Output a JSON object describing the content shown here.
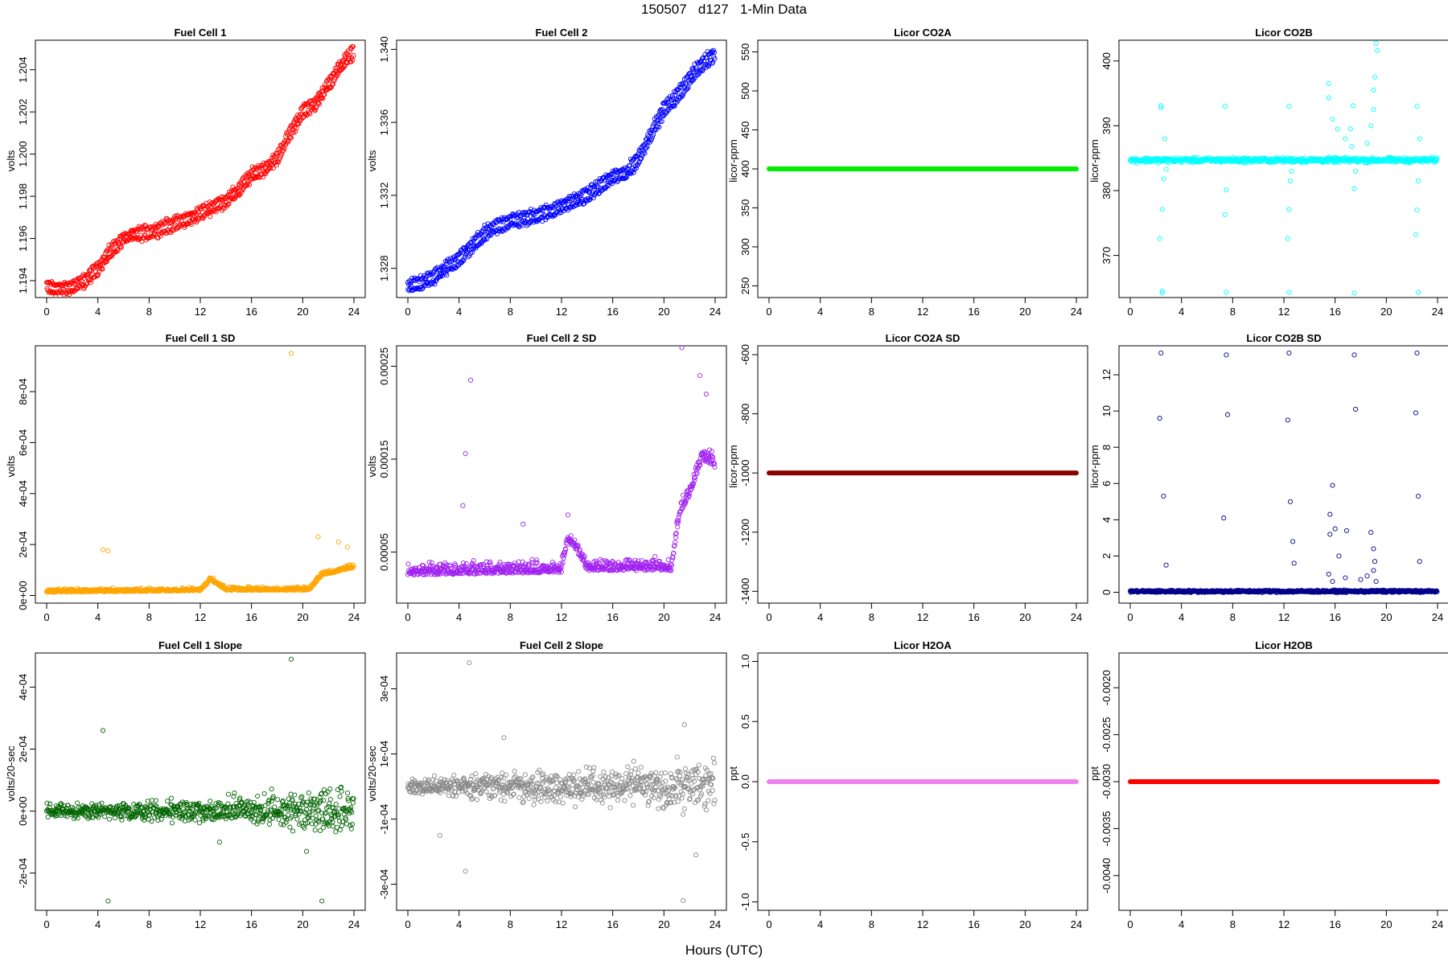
{
  "figure": {
    "title": "150507   d127   1-Min Data",
    "xlabel": "Hours (UTC)"
  },
  "chart_data": [
    {
      "id": "fc1",
      "type": "scatter",
      "title": "Fuel Cell 1",
      "ylabel": "volts",
      "color": "#ff0000",
      "xlim": [
        0,
        24
      ],
      "xticks": [
        0,
        4,
        8,
        12,
        16,
        20,
        24
      ],
      "ylim": [
        1.1932,
        1.2054
      ],
      "yticks": [
        1.194,
        1.196,
        1.198,
        1.2,
        1.202,
        1.204
      ],
      "ytick_labels": [
        "1.194",
        "1.196",
        "1.198",
        "1.200",
        "1.202",
        "1.204"
      ],
      "series": [
        {
          "kind": "band",
          "band": 0.0004,
          "jitter": 0.00025,
          "x": [
            0,
            1,
            2,
            3,
            4,
            5,
            6,
            7,
            8,
            9,
            10,
            11,
            12,
            13,
            14,
            15,
            16,
            17,
            18,
            19,
            20,
            21,
            22,
            23,
            24
          ],
          "y": [
            1.1937,
            1.1936,
            1.1937,
            1.194,
            1.1946,
            1.1954,
            1.196,
            1.1962,
            1.1963,
            1.1965,
            1.1967,
            1.1969,
            1.1972,
            1.1975,
            1.1978,
            1.1983,
            1.199,
            1.1993,
            1.1998,
            1.201,
            1.202,
            1.2024,
            1.2033,
            1.2042,
            1.2049
          ]
        }
      ]
    },
    {
      "id": "fc2",
      "type": "scatter",
      "title": "Fuel Cell 2",
      "ylabel": "volts",
      "color": "#0000ff",
      "xlim": [
        0,
        24
      ],
      "xticks": [
        0,
        4,
        8,
        12,
        16,
        20,
        24
      ],
      "ylim": [
        1.3264,
        1.3405
      ],
      "yticks": [
        1.328,
        1.332,
        1.336,
        1.34
      ],
      "ytick_labels": [
        "1.328",
        "1.332",
        "1.336",
        "1.340"
      ],
      "series": [
        {
          "kind": "band",
          "band": 0.0005,
          "jitter": 0.0003,
          "x": [
            0,
            1,
            2,
            3,
            4,
            5,
            6,
            7,
            8,
            9,
            10,
            11,
            12,
            13,
            14,
            15,
            16,
            17,
            18,
            19,
            20,
            21,
            22,
            23,
            24
          ],
          "y": [
            1.327,
            1.3272,
            1.3275,
            1.328,
            1.3285,
            1.3292,
            1.3299,
            1.3303,
            1.3306,
            1.3307,
            1.3309,
            1.3311,
            1.3314,
            1.3317,
            1.332,
            1.3325,
            1.333,
            1.3332,
            1.334,
            1.3354,
            1.3367,
            1.3374,
            1.3384,
            1.3392,
            1.3398
          ]
        }
      ]
    },
    {
      "id": "co2a",
      "type": "scatter",
      "title": "Licor CO2A",
      "ylabel": "licor-ppm",
      "color": "#00ee00",
      "xlim": [
        0,
        24
      ],
      "xticks": [
        0,
        4,
        8,
        12,
        16,
        20,
        24
      ],
      "ylim": [
        235,
        565
      ],
      "yticks": [
        250,
        300,
        350,
        400,
        450,
        500,
        550
      ],
      "ytick_labels": [
        "250",
        "300",
        "350",
        "400",
        "450",
        "500",
        "550"
      ],
      "series": [
        {
          "kind": "flat",
          "value": 400
        }
      ]
    },
    {
      "id": "co2b",
      "type": "scatter",
      "title": "Licor CO2B",
      "ylabel": "licor-ppm",
      "color": "#00ffff",
      "xlim": [
        0,
        24
      ],
      "xticks": [
        0,
        4,
        8,
        12,
        16,
        20,
        24
      ],
      "ylim": [
        363.5,
        403.2
      ],
      "yticks": [
        370,
        380,
        390,
        400
      ],
      "ytick_labels": [
        "370",
        "380",
        "390",
        "400"
      ],
      "series": [
        {
          "kind": "noise",
          "base": 384.7,
          "noise": 0.3,
          "points": [
            [
              2.4,
              392.8
            ],
            [
              2.4,
              393.1
            ],
            [
              2.5,
              364.2
            ],
            [
              2.5,
              364.5
            ],
            [
              2.3,
              372.6
            ],
            [
              2.5,
              377.1
            ],
            [
              2.6,
              381.8
            ],
            [
              2.7,
              388.0
            ],
            [
              2.8,
              383.3
            ],
            [
              7.4,
              393.0
            ],
            [
              7.5,
              364.3
            ],
            [
              7.4,
              376.3
            ],
            [
              7.5,
              380.1
            ],
            [
              12.4,
              393.0
            ],
            [
              12.4,
              364.3
            ],
            [
              12.3,
              372.6
            ],
            [
              12.4,
              377.1
            ],
            [
              12.5,
              381.5
            ],
            [
              12.6,
              383.0
            ],
            [
              15.5,
              396.5
            ],
            [
              15.5,
              394.3
            ],
            [
              15.8,
              391.0
            ],
            [
              16.2,
              389.5
            ],
            [
              16.8,
              388.0
            ],
            [
              17.2,
              389.5
            ],
            [
              17.3,
              386.8
            ],
            [
              17.4,
              393.1
            ],
            [
              17.5,
              364.2
            ],
            [
              17.5,
              380.3
            ],
            [
              17.6,
              383.0
            ],
            [
              18.5,
              387.3
            ],
            [
              18.8,
              390.0
            ],
            [
              19.0,
              395.5
            ],
            [
              19.1,
              397.5
            ],
            [
              19.2,
              402.7
            ],
            [
              19.3,
              401.6
            ],
            [
              19.0,
              392.5
            ],
            [
              22.4,
              393.0
            ],
            [
              22.5,
              364.3
            ],
            [
              22.3,
              373.2
            ],
            [
              22.4,
              377.0
            ],
            [
              22.5,
              381.5
            ],
            [
              22.6,
              388.0
            ]
          ]
        }
      ]
    },
    {
      "id": "fc1sd",
      "type": "scatter",
      "title": "Fuel Cell 1 SD",
      "ylabel": "volts",
      "color": "#ffa500",
      "xlim": [
        0,
        24
      ],
      "xticks": [
        0,
        4,
        8,
        12,
        16,
        20,
        24
      ],
      "ylim": [
        -3e-05,
        0.00098
      ],
      "yticks": [
        0,
        0.0002,
        0.0004,
        0.0006,
        0.0008
      ],
      "ytick_labels": [
        "0e+00",
        "2e-04",
        "4e-04",
        "6e-04",
        "8e-04"
      ],
      "series": [
        {
          "kind": "noise",
          "profile": [
            [
              0,
              1.2e-05
            ],
            [
              12,
              1.8e-05
            ],
            [
              12.8,
              6e-05
            ],
            [
              14,
              2e-05
            ],
            [
              20.5,
              2e-05
            ],
            [
              21.5,
              8e-05
            ],
            [
              22.5,
              9e-05
            ],
            [
              24,
              0.00011
            ]
          ],
          "noise": 1e-05,
          "points": [
            [
              4.4,
              0.00018
            ],
            [
              4.8,
              0.000175
            ],
            [
              19.1,
              0.00095
            ],
            [
              21.2,
              0.00023
            ],
            [
              22.8,
              0.00021
            ],
            [
              23.5,
              0.00019
            ]
          ]
        }
      ]
    },
    {
      "id": "fc2sd",
      "type": "scatter",
      "title": "Fuel Cell 2 SD",
      "ylabel": "volts",
      "color": "#a020f0",
      "xlim": [
        0,
        24
      ],
      "xticks": [
        0,
        4,
        8,
        12,
        16,
        20,
        24
      ],
      "ylim": [
        -5e-06,
        0.000272
      ],
      "yticks": [
        5e-05,
        0.00015,
        0.00025
      ],
      "ytick_labels": [
        "0.00005",
        "0.00015",
        "0.00025"
      ],
      "series": [
        {
          "kind": "noise",
          "profile": [
            [
              0,
              2.5e-05
            ],
            [
              12,
              2.8e-05
            ],
            [
              12.5,
              6e-05
            ],
            [
              13,
              5.5e-05
            ],
            [
              14,
              3e-05
            ],
            [
              20.6,
              3e-05
            ],
            [
              21.2,
              9e-05
            ],
            [
              22.0,
              0.00011
            ],
            [
              23.0,
              0.00015
            ],
            [
              24,
              0.00014
            ]
          ],
          "noise": 1e-05,
          "points": [
            [
              4.5,
              0.000156
            ],
            [
              4.9,
              0.000235
            ],
            [
              4.3,
              0.0001
            ],
            [
              9.0,
              8e-05
            ],
            [
              12.5,
              9e-05
            ],
            [
              22.8,
              0.00024
            ],
            [
              23.3,
              0.00022
            ],
            [
              21.4,
              0.00027
            ]
          ]
        }
      ]
    },
    {
      "id": "co2asd",
      "type": "scatter",
      "title": "Licor CO2A SD",
      "ylabel": "licor-ppm",
      "color": "#8b0000",
      "xlim": [
        0,
        24
      ],
      "xticks": [
        0,
        4,
        8,
        12,
        16,
        20,
        24
      ],
      "ylim": [
        -1440,
        -570
      ],
      "yticks": [
        -1400,
        -1200,
        -1000,
        -800,
        -600
      ],
      "ytick_labels": [
        "-1400",
        "-1200",
        "-1000",
        "-800",
        "-600"
      ],
      "series": [
        {
          "kind": "flat",
          "value": -1000
        }
      ]
    },
    {
      "id": "co2bsd",
      "type": "scatter",
      "title": "Licor CO2B SD",
      "ylabel": "licor-ppm",
      "color": "#00008b",
      "xlim": [
        0,
        24
      ],
      "xticks": [
        0,
        4,
        8,
        12,
        16,
        20,
        24
      ],
      "ylim": [
        -0.6,
        13.6
      ],
      "yticks": [
        0,
        2,
        4,
        6,
        8,
        10,
        12
      ],
      "ytick_labels": [
        "0",
        "2",
        "4",
        "6",
        "8",
        "10",
        "12"
      ],
      "series": [
        {
          "kind": "noise",
          "base": 0.05,
          "noise": 0.05,
          "points": [
            [
              2.4,
              13.2
            ],
            [
              2.3,
              9.6
            ],
            [
              2.6,
              5.3
            ],
            [
              2.8,
              1.5
            ],
            [
              7.5,
              13.1
            ],
            [
              7.6,
              9.8
            ],
            [
              7.3,
              4.1
            ],
            [
              12.4,
              13.2
            ],
            [
              12.3,
              9.5
            ],
            [
              12.5,
              5.0
            ],
            [
              12.7,
              2.8
            ],
            [
              12.8,
              1.6
            ],
            [
              15.6,
              4.3
            ],
            [
              15.8,
              5.9
            ],
            [
              15.6,
              3.2
            ],
            [
              16.0,
              3.5
            ],
            [
              16.3,
              2.0
            ],
            [
              16.9,
              3.4
            ],
            [
              17.5,
              13.1
            ],
            [
              17.6,
              10.1
            ],
            [
              18.8,
              3.3
            ],
            [
              19.0,
              2.4
            ],
            [
              19.1,
              1.7
            ],
            [
              19.0,
              1.2
            ],
            [
              22.4,
              13.2
            ],
            [
              22.3,
              9.9
            ],
            [
              22.5,
              5.3
            ],
            [
              22.6,
              1.7
            ],
            [
              15.5,
              1.0
            ],
            [
              16.8,
              0.8
            ],
            [
              18.0,
              0.7
            ],
            [
              18.5,
              0.9
            ],
            [
              19.2,
              0.6
            ],
            [
              15.8,
              0.6
            ]
          ]
        }
      ]
    },
    {
      "id": "fc1slope",
      "type": "scatter",
      "title": "Fuel Cell 1 Slope",
      "ylabel": "volts/20-sec",
      "color": "#006400",
      "xlim": [
        0,
        24
      ],
      "xticks": [
        0,
        4,
        8,
        12,
        16,
        20,
        24
      ],
      "ylim": [
        -0.00032,
        0.00051
      ],
      "yticks": [
        -0.0002,
        0,
        0.0002,
        0.0004
      ],
      "ytick_labels": [
        "-2e-04",
        "0e+00",
        "2e-04",
        "4e-04"
      ],
      "series": [
        {
          "kind": "noise",
          "profile": [
            [
              0,
              1.5e-05
            ],
            [
              12,
              3e-05
            ],
            [
              16,
              4e-05
            ],
            [
              20,
              5e-05
            ],
            [
              24,
              6e-05
            ]
          ],
          "noise": 1,
          "points": [
            [
              4.4,
              0.00026
            ],
            [
              4.8,
              -0.00029
            ],
            [
              19.1,
              0.00049
            ],
            [
              21.5,
              -0.00029
            ],
            [
              20.3,
              -0.00013
            ],
            [
              13.5,
              -0.0001
            ]
          ]
        }
      ]
    },
    {
      "id": "fc2slope",
      "type": "scatter",
      "title": "Fuel Cell 2 Slope",
      "ylabel": "volts/20-sec",
      "color": "#888888",
      "xlim": [
        0,
        24
      ],
      "xticks": [
        0,
        4,
        8,
        12,
        16,
        20,
        24
      ],
      "ylim": [
        -0.00038,
        0.00041
      ],
      "yticks": [
        -0.0003,
        -0.0001,
        0.0001,
        0.0003
      ],
      "ytick_labels": [
        "-3e-04",
        "-1e-04",
        "1e-04",
        "3e-04"
      ],
      "series": [
        {
          "kind": "noise",
          "profile": [
            [
              0,
              2e-05
            ],
            [
              12,
              4e-05
            ],
            [
              20,
              5e-05
            ],
            [
              24,
              7e-05
            ]
          ],
          "noise": 1,
          "points": [
            [
              4.8,
              0.00038
            ],
            [
              4.5,
              -0.00026
            ],
            [
              21.5,
              -0.00035
            ],
            [
              21.6,
              0.00019
            ],
            [
              7.5,
              0.00015
            ],
            [
              22.5,
              -0.00021
            ],
            [
              2.5,
              -0.00015
            ]
          ]
        }
      ]
    },
    {
      "id": "h2oa",
      "type": "scatter",
      "title": "Licor H2OA",
      "ylabel": "ppt",
      "color": "#ee82ee",
      "xlim": [
        0,
        24
      ],
      "xticks": [
        0,
        4,
        8,
        12,
        16,
        20,
        24
      ],
      "ylim": [
        -1.07,
        1.07
      ],
      "yticks": [
        -1,
        -0.5,
        0,
        0.5,
        1
      ],
      "ytick_labels": [
        "-1.0",
        "-0.5",
        "0.0",
        "0.5",
        "1.0"
      ],
      "series": [
        {
          "kind": "flat",
          "value": 0
        }
      ]
    },
    {
      "id": "h2ob",
      "type": "scatter",
      "title": "Licor H2OB",
      "ylabel": "ppt",
      "color": "#ff0000",
      "xlim": [
        0,
        24
      ],
      "xticks": [
        0,
        4,
        8,
        12,
        16,
        20,
        24
      ],
      "ylim": [
        -0.00437,
        -0.00163
      ],
      "yticks": [
        -0.004,
        -0.0035,
        -0.003,
        -0.0025,
        -0.002
      ],
      "ytick_labels": [
        "-0.0040",
        "-0.0035",
        "-0.0030",
        "-0.0025",
        "-0.0020"
      ],
      "series": [
        {
          "kind": "flat",
          "value": -0.003
        }
      ]
    }
  ]
}
